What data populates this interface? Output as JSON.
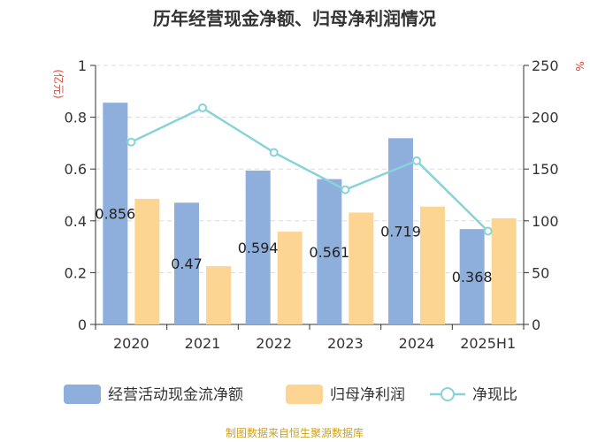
{
  "chart_data": {
    "type": "bar",
    "title": "历年经营现金净额、归母净利润情况",
    "categories": [
      "2020",
      "2021",
      "2022",
      "2023",
      "2024",
      "2025H1"
    ],
    "series": [
      {
        "name": "经营活动现金流净额",
        "type": "bar",
        "axis": "left",
        "color": "#8eaedc",
        "values": [
          0.856,
          0.47,
          0.594,
          0.561,
          0.719,
          0.368
        ],
        "labels": [
          "0.856",
          "0.47",
          "0.594",
          "0.561",
          "0.719",
          "0.368"
        ]
      },
      {
        "name": "归母净利润",
        "type": "bar",
        "axis": "left",
        "color": "#fdd592",
        "values": [
          0.485,
          0.225,
          0.358,
          0.432,
          0.455,
          0.41
        ]
      },
      {
        "name": "净现比",
        "type": "line",
        "axis": "right",
        "color": "#87d3d8",
        "values": [
          176,
          209,
          166,
          130,
          158,
          90
        ]
      }
    ],
    "y_left": {
      "unit": "(亿元)",
      "ylim": [
        0,
        1
      ],
      "ticks": [
        "0",
        "0.2",
        "0.4",
        "0.6",
        "0.8",
        "1"
      ]
    },
    "y_right": {
      "unit": "%",
      "ylim": [
        0,
        250
      ],
      "ticks": [
        "0",
        "50",
        "100",
        "150",
        "200",
        "250"
      ]
    },
    "legend_position": "bottom",
    "grid": true
  },
  "source": "制图数据来自恒生聚源数据库"
}
